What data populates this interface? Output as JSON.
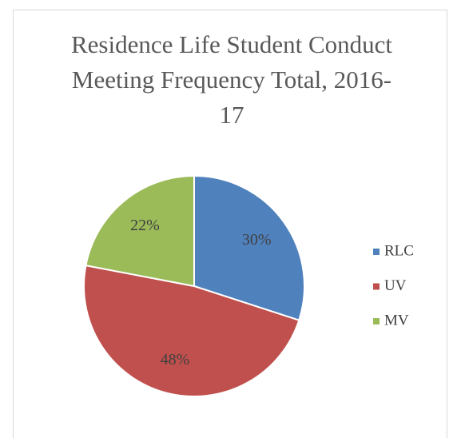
{
  "chart_data": {
    "type": "pie",
    "title": "Residence Life Student Conduct Meeting Frequency Total, 2016-17",
    "categories": [
      "RLC",
      "UV",
      "MV"
    ],
    "values": [
      30,
      48,
      22
    ],
    "value_labels": [
      "30%",
      "48%",
      "22%"
    ],
    "colors": [
      "#4f81bd",
      "#c0504d",
      "#9bbb59"
    ],
    "legend": "right"
  }
}
